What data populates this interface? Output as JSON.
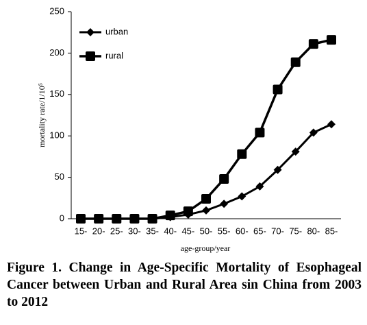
{
  "chart_data": {
    "type": "line",
    "categories": [
      "15-",
      "20-",
      "25-",
      "30-",
      "35-",
      "40-",
      "45-",
      "50-",
      "55-",
      "60-",
      "65-",
      "70-",
      "75-",
      "80-",
      "85-"
    ],
    "series": [
      {
        "name": "urban",
        "color": "#000000",
        "marker": "diamond",
        "values": [
          0,
          0,
          0,
          0,
          0,
          2,
          5,
          10,
          18,
          27,
          39,
          59,
          81,
          104,
          114
        ]
      },
      {
        "name": "rural",
        "color": "#000000",
        "marker": "square",
        "values": [
          0,
          0,
          0,
          0,
          0,
          4,
          9,
          24,
          48,
          78,
          104,
          156,
          189,
          211,
          216
        ]
      }
    ],
    "ylim": [
      0,
      250
    ],
    "yticks": [
      0,
      50,
      100,
      150,
      200,
      250
    ],
    "ylabel": "mortality rate/1/10⁵",
    "xlabel": "age-group/year",
    "legend": "upper left",
    "grid": false,
    "caption": "Figure 1. Change in Age-Specific Mortality of Esophageal Cancer between Urban and Rural Area sin China from 2003 to 2012"
  }
}
